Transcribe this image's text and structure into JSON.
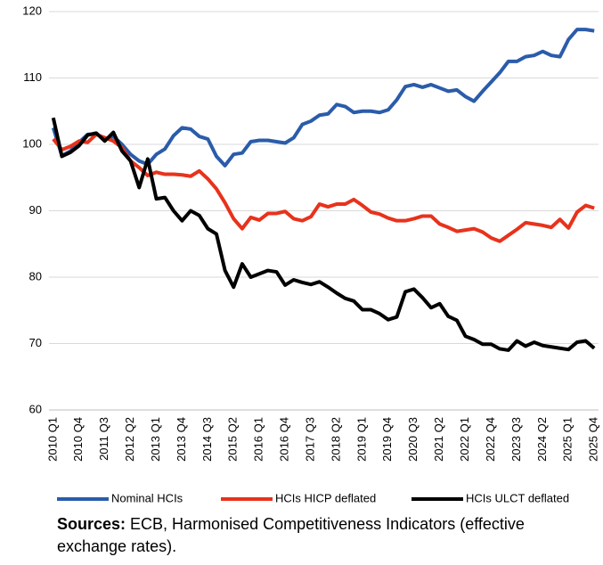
{
  "chart_data": {
    "type": "line",
    "categories": [
      "2010 Q1",
      null,
      null,
      "2010 Q4",
      null,
      null,
      "2011 Q3",
      null,
      null,
      "2012 Q2",
      null,
      null,
      "2013 Q1",
      null,
      null,
      "2013 Q4",
      null,
      null,
      "2014 Q3",
      null,
      null,
      "2015 Q2",
      null,
      null,
      "2016 Q1",
      null,
      null,
      "2016 Q4",
      null,
      null,
      "2017 Q3",
      null,
      null,
      "2018 Q2",
      null,
      null,
      "2019 Q1",
      null,
      null,
      "2019 Q4",
      null,
      null,
      "2020 Q3",
      null,
      null,
      "2021 Q2",
      null,
      null,
      "2022 Q1",
      null,
      null,
      "2022 Q4",
      null,
      null,
      "2023 Q3",
      null,
      null,
      "2024 Q2",
      null,
      null,
      "2025 Q1",
      null,
      null,
      "2025 Q4"
    ],
    "series": [
      {
        "name": "Nominal HCIs",
        "color": "#2a5caa",
        "values": [
          102.5,
          98.3,
          99.0,
          100.3,
          101.5,
          101.6,
          100.8,
          101.2,
          100.0,
          98.5,
          97.5,
          97.0,
          98.5,
          99.3,
          101.3,
          102.5,
          102.3,
          101.2,
          100.8,
          98.2,
          96.8,
          98.5,
          98.7,
          100.4,
          100.6,
          100.6,
          100.4,
          100.2,
          101.0,
          103.0,
          103.5,
          104.4,
          104.6,
          106.0,
          105.7,
          104.8,
          105.0,
          105.0,
          104.8,
          105.2,
          106.7,
          108.7,
          109.0,
          108.6,
          109.0,
          108.5,
          108.0,
          108.2,
          107.2,
          106.5,
          108.0,
          109.4,
          110.8,
          112.5,
          112.5,
          113.2,
          113.4,
          114.0,
          113.4,
          113.2,
          115.8,
          117.3,
          117.3,
          117.1
        ]
      },
      {
        "name": "HCIs HICP deflated",
        "color": "#e8321c",
        "values": [
          100.8,
          99.2,
          99.7,
          100.5,
          100.3,
          101.5,
          101.0,
          100.5,
          99.5,
          97.5,
          96.5,
          95.3,
          95.8,
          95.5,
          95.5,
          95.4,
          95.2,
          96.0,
          94.8,
          93.3,
          91.2,
          88.8,
          87.3,
          89.0,
          88.6,
          89.6,
          89.6,
          89.9,
          88.8,
          88.5,
          89.1,
          91.0,
          90.6,
          91.0,
          91.0,
          91.7,
          90.8,
          89.8,
          89.5,
          88.9,
          88.5,
          88.5,
          88.8,
          89.2,
          89.2,
          88.0,
          87.5,
          86.9,
          87.1,
          87.3,
          86.8,
          85.9,
          85.4,
          86.3,
          87.2,
          88.2,
          88.0,
          87.8,
          87.5,
          88.7,
          87.4,
          89.8,
          90.8,
          90.4
        ]
      },
      {
        "name": "HCIs ULCT deflated",
        "color": "#000000",
        "values": [
          104.0,
          98.2,
          98.8,
          99.8,
          101.4,
          101.7,
          100.5,
          101.8,
          99.0,
          97.5,
          93.5,
          97.8,
          91.8,
          92.0,
          90.0,
          88.5,
          90.0,
          89.3,
          87.3,
          86.5,
          81.0,
          78.5,
          82.0,
          80.0,
          80.5,
          81.0,
          80.8,
          78.8,
          79.6,
          79.2,
          78.9,
          79.3,
          78.5,
          77.6,
          76.8,
          76.4,
          75.1,
          75.1,
          74.5,
          73.6,
          74.0,
          77.8,
          78.2,
          76.9,
          75.4,
          76.0,
          74.1,
          73.5,
          71.1,
          70.6,
          69.9,
          69.9,
          69.2,
          69.0,
          70.4,
          69.6,
          70.2,
          69.7,
          69.5,
          69.3,
          69.1,
          70.2,
          70.4,
          69.3
        ]
      }
    ],
    "ylim": [
      60,
      120
    ],
    "yticks": [
      60,
      70,
      80,
      90,
      100,
      110,
      120
    ],
    "grid": true,
    "legend": "bottom",
    "source_label": "Sources:",
    "source_text": "ECB, Harmonised Competitiveness Indicators (effective exchange rates)."
  }
}
